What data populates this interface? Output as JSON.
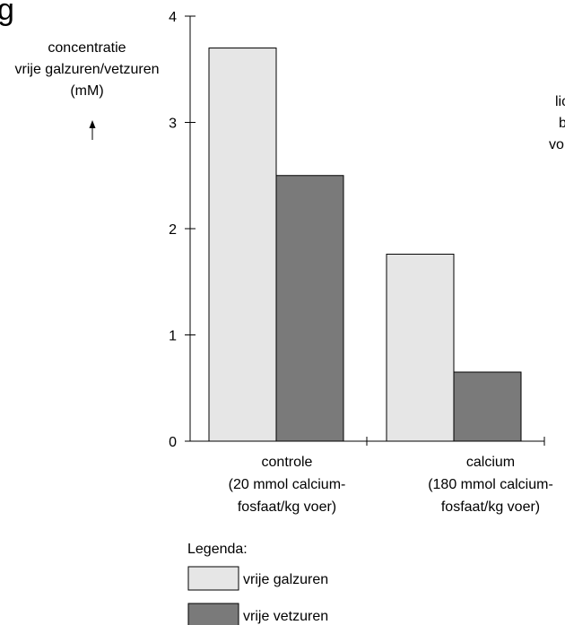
{
  "page": {
    "heading_fragment": "g",
    "side_text_fragment": [
      "lic",
      "b",
      "vo"
    ]
  },
  "chart_data": {
    "type": "bar",
    "ylabel_lines": [
      "concentratie",
      "vrije galzuren/vetzuren",
      "(mM)"
    ],
    "ylabel_arrow": "↑",
    "ylim": [
      0,
      4
    ],
    "yticks": [
      0,
      1,
      2,
      3,
      4
    ],
    "categories": [
      [
        "controle",
        "(20 mmol calcium-",
        "fosfaat/kg voer)"
      ],
      [
        "calcium",
        "(180 mmol calcium-",
        "fosfaat/kg voer)"
      ]
    ],
    "series": [
      {
        "name": "vrije galzuren",
        "values": [
          3.7,
          1.76
        ],
        "color": "#e6e6e6"
      },
      {
        "name": "vrije vetzuren",
        "values": [
          2.5,
          0.65
        ],
        "color": "#7a7a7a"
      }
    ],
    "legend": {
      "title": "Legenda:",
      "placement": "bottom-left"
    },
    "grid": false
  }
}
